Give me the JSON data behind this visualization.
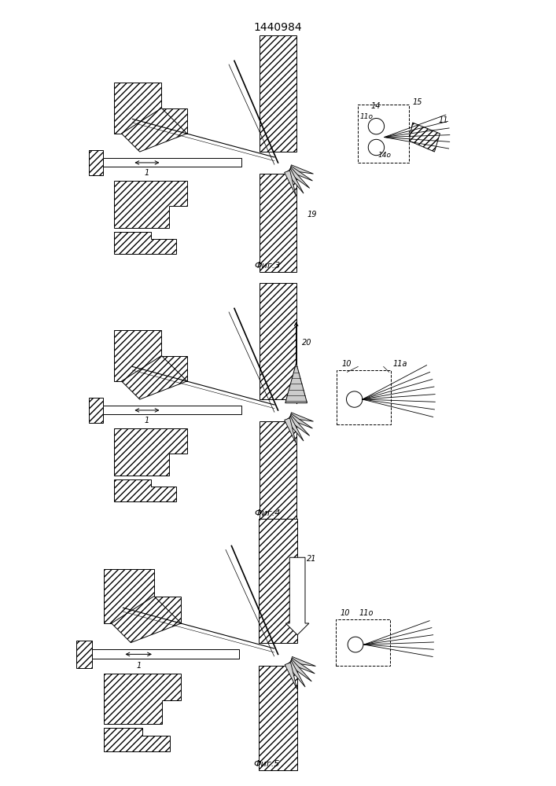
{
  "title": "1440984",
  "fig3_label": "Фиг.3",
  "fig4_label": "Фиг.4",
  "fig5_label": "Фиг.5",
  "bg_color": "#ffffff"
}
